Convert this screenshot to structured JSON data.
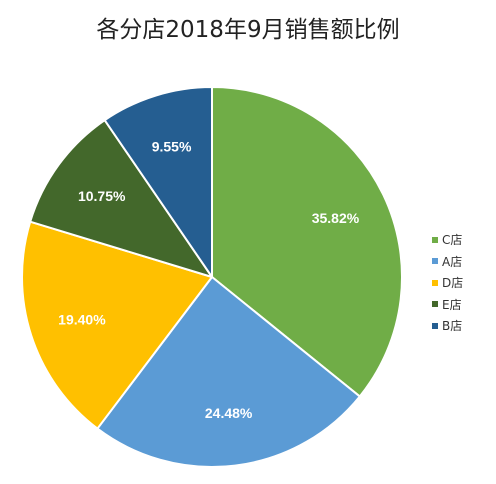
{
  "chart_data": {
    "type": "pie",
    "title": "各分店2018年9月销售额比例",
    "categories": [
      "C店",
      "A店",
      "D店",
      "E店",
      "B店"
    ],
    "values": [
      35.82,
      24.48,
      19.4,
      10.75,
      9.55
    ],
    "labels": [
      "35.82%",
      "24.48%",
      "19.40%",
      "10.75%",
      "9.55%"
    ],
    "colors": [
      "#70AD47",
      "#5B9BD5",
      "#FFC000",
      "#43682B",
      "#255E91"
    ],
    "legend_position": "right"
  },
  "legend": {
    "items": [
      {
        "label": "C店",
        "color": "#70AD47"
      },
      {
        "label": "A店",
        "color": "#5B9BD5"
      },
      {
        "label": "D店",
        "color": "#FFC000"
      },
      {
        "label": "E店",
        "color": "#43682B"
      },
      {
        "label": "B店",
        "color": "#255E91"
      }
    ]
  }
}
